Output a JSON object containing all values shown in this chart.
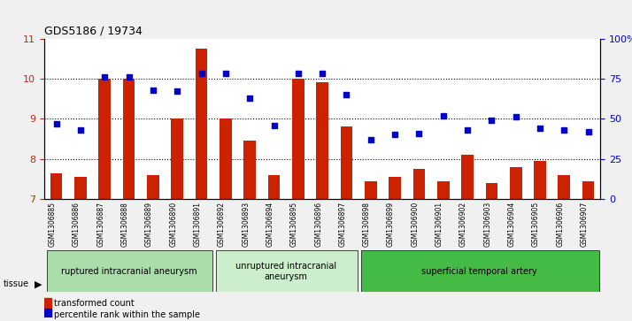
{
  "title": "GDS5186 / 19734",
  "samples": [
    "GSM1306885",
    "GSM1306886",
    "GSM1306887",
    "GSM1306888",
    "GSM1306889",
    "GSM1306890",
    "GSM1306891",
    "GSM1306892",
    "GSM1306893",
    "GSM1306894",
    "GSM1306895",
    "GSM1306896",
    "GSM1306897",
    "GSM1306898",
    "GSM1306899",
    "GSM1306900",
    "GSM1306901",
    "GSM1306902",
    "GSM1306903",
    "GSM1306904",
    "GSM1306905",
    "GSM1306906",
    "GSM1306907"
  ],
  "bar_values": [
    7.65,
    7.55,
    10.0,
    10.0,
    7.6,
    9.0,
    10.75,
    9.0,
    8.45,
    7.6,
    10.0,
    9.9,
    8.8,
    7.45,
    7.55,
    7.75,
    7.45,
    8.1,
    7.4,
    7.8,
    7.95,
    7.6,
    7.45
  ],
  "dot_values": [
    47,
    43,
    76,
    76,
    68,
    67,
    78,
    78,
    63,
    46,
    78,
    78,
    65,
    37,
    40,
    41,
    52,
    43,
    49,
    51,
    44,
    43,
    42
  ],
  "ylim_left": [
    7,
    11
  ],
  "ylim_right": [
    0,
    100
  ],
  "yticks_left": [
    7,
    8,
    9,
    10,
    11
  ],
  "yticks_right": [
    0,
    25,
    50,
    75,
    100
  ],
  "bar_color": "#cc2200",
  "dot_color": "#0000cc",
  "groups": [
    {
      "label": "ruptured intracranial aneurysm",
      "start": 0,
      "end": 7,
      "color": "#aaddaa"
    },
    {
      "label": "unruptured intracranial\naneurysm",
      "start": 7,
      "end": 13,
      "color": "#cceecc"
    },
    {
      "label": "superficial temporal artery",
      "start": 13,
      "end": 23,
      "color": "#44bb44"
    }
  ],
  "legend_bar_label": "transformed count",
  "legend_dot_label": "percentile rank within the sample",
  "tissue_label": "tissue",
  "bg_color": "#e8e8e8",
  "plot_bg": "#ffffff"
}
